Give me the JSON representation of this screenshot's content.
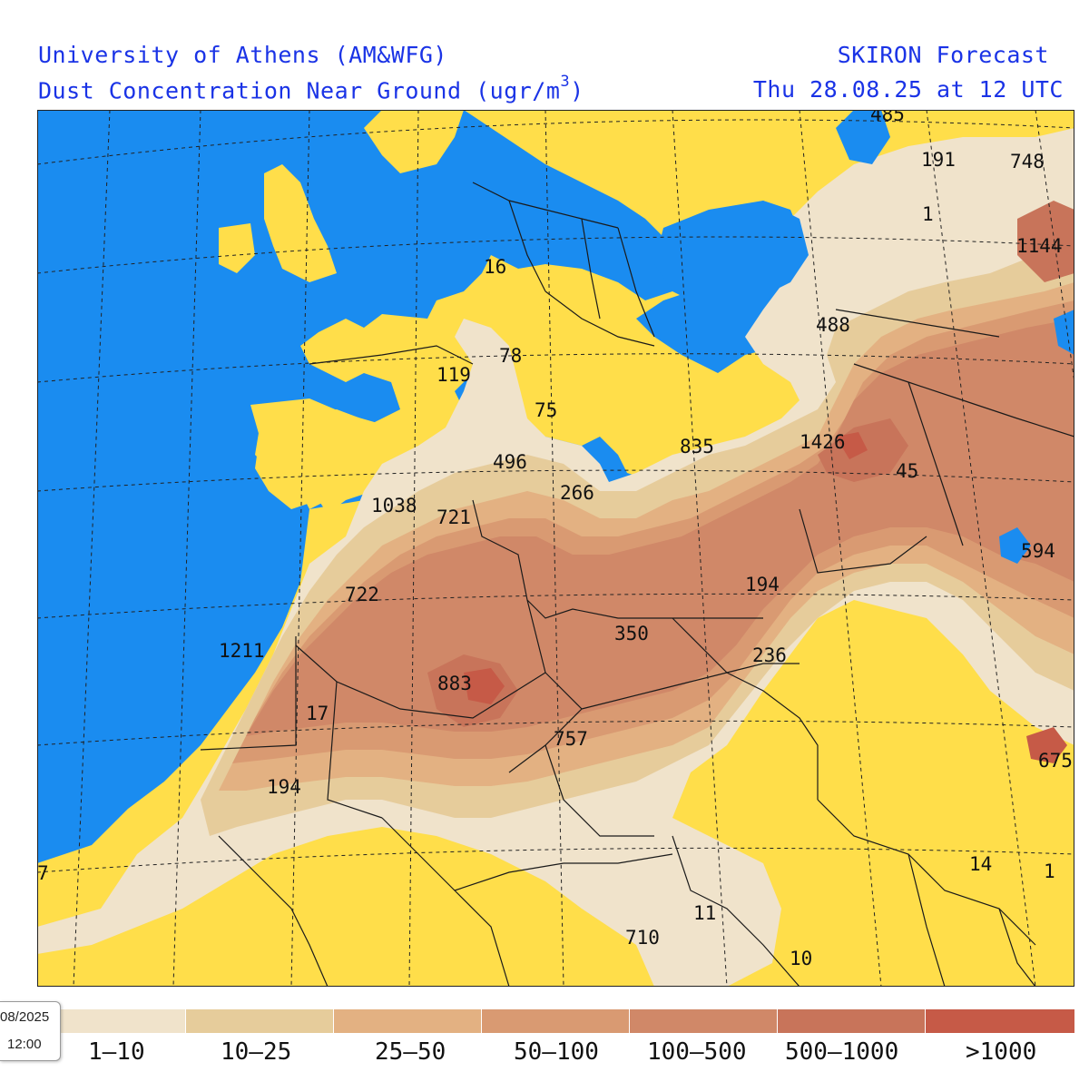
{
  "header": {
    "left_line1": "University of Athens (AM&WFG)",
    "left_line2": "Dust Concentration Near Ground (ugr/m",
    "left_line2_sup": "3",
    "left_line2_end": ")",
    "right_line1": "SKIRON Forecast",
    "right_line2": "Thu 28.08.25 at 12 UTC"
  },
  "colors": {
    "sea": "#1a8cf0",
    "no_dust": "#ffde4a",
    "c1": "#f0e3cb",
    "c2": "#e6cc9b",
    "c3": "#e3b182",
    "c4": "#d99a72",
    "c5": "#d08868",
    "c6": "#c8745a",
    "c7": "#c65a47",
    "border": "#1a1a1a"
  },
  "legend": {
    "items": [
      {
        "label": "1–10",
        "color": "#f0e3cb"
      },
      {
        "label": "10–25",
        "color": "#e6cc9b"
      },
      {
        "label": "25–50",
        "color": "#e3b182"
      },
      {
        "label": "50–100",
        "color": "#d99a72"
      },
      {
        "label": "100–500",
        "color": "#d08868"
      },
      {
        "label": "500–1000",
        "color": "#c8745a"
      },
      {
        "label": ">1000",
        "color": "#c65a47"
      }
    ]
  },
  "time_badge": {
    "date": "08/2025",
    "time": "12:00"
  },
  "map_labels": [
    "485",
    "191",
    "748",
    "1",
    "1144",
    "16",
    "488",
    "78",
    "119",
    "75",
    "1426",
    "835",
    "496",
    "266",
    "45",
    "1038",
    "721",
    "594",
    "722",
    "194",
    "1211",
    "350",
    "236",
    "883",
    "17",
    "757",
    "675",
    "194",
    "7",
    "14",
    "1",
    "11",
    "710",
    "10"
  ]
}
